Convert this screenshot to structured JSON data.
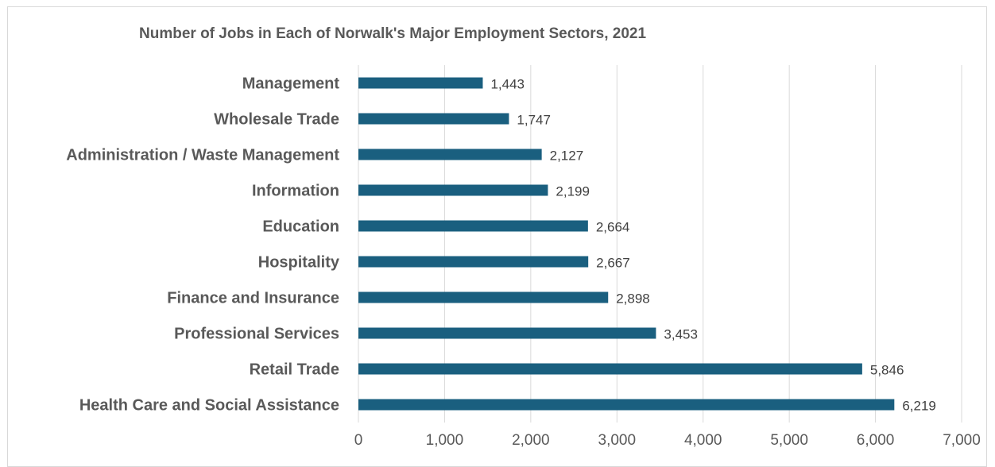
{
  "chart_data": {
    "type": "bar",
    "orientation": "horizontal",
    "title": "Number of Jobs in Each of Norwalk's Major Employment Sectors, 2021",
    "categories": [
      "Management",
      "Wholesale Trade",
      "Administration / Waste Management",
      "Information",
      "Education",
      "Hospitality",
      "Finance and Insurance",
      "Professional  Services",
      "Retail Trade",
      "Health Care and Social Assistance"
    ],
    "values": [
      1443,
      1747,
      2127,
      2199,
      2664,
      2667,
      2898,
      3453,
      5846,
      6219
    ],
    "data_labels": [
      "1,443",
      "1,747",
      "2,127",
      "2,199",
      "2,664",
      "2,667",
      "2,898",
      "3,453",
      "5,846",
      "6,219"
    ],
    "xlim": [
      0,
      7000
    ],
    "x_ticks": [
      0,
      1000,
      2000,
      3000,
      4000,
      5000,
      6000,
      7000
    ],
    "x_tick_labels": [
      "0",
      "1,000",
      "2,000",
      "3,000",
      "4,000",
      "5,000",
      "6,000",
      "7,000"
    ],
    "xlabel": "",
    "ylabel": "",
    "grid": "vertical",
    "legend": "none",
    "bar_color": "#1a5f7f",
    "grid_color": "#d9d9d9"
  }
}
